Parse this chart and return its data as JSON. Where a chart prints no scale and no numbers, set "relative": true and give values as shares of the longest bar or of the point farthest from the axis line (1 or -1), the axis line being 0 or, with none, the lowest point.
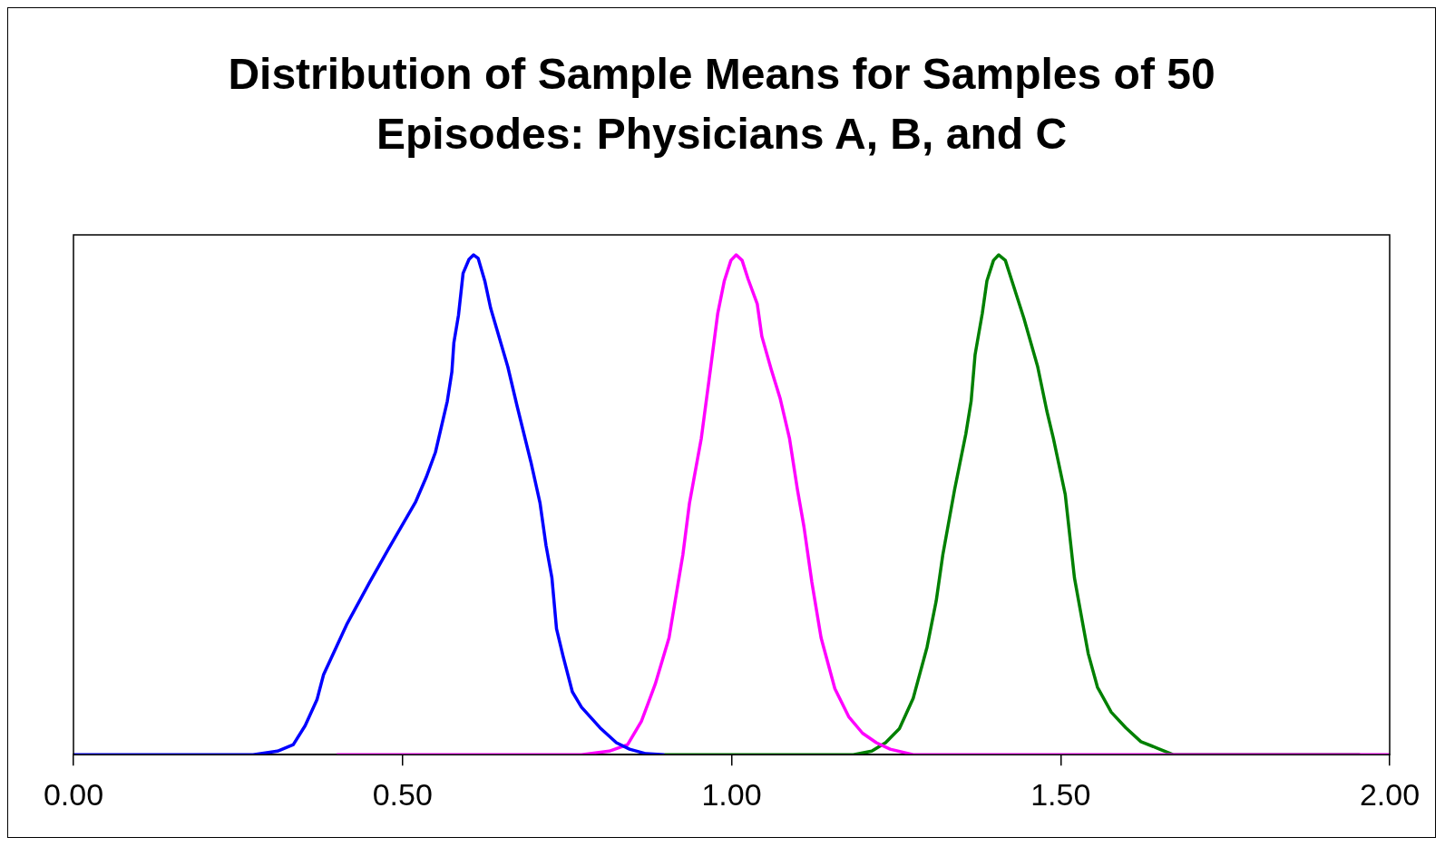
{
  "chart_data": {
    "type": "line",
    "title": "Distribution of Sample Means for Samples of 50 Episodes: Physicians A, B, and C",
    "relative": true,
    "xlim": [
      0,
      2
    ],
    "xticks": [
      {
        "value": 0,
        "label": "0.00"
      },
      {
        "value": 0.5,
        "label": "0.50"
      },
      {
        "value": 1,
        "label": "1.00"
      },
      {
        "value": 1.5,
        "label": "1.50"
      },
      {
        "value": 2,
        "label": "2.00"
      }
    ],
    "marker": "none",
    "line_style": "solid",
    "legend": false,
    "grid": false,
    "series": [
      {
        "color": "#0000ff",
        "x": [
          0,
          0.273,
          0.31,
          0.334,
          0.352,
          0.37,
          0.38,
          0.415,
          0.45,
          0.478,
          0.52,
          0.536,
          0.55,
          0.568,
          0.575,
          0.578,
          0.585,
          0.592,
          0.601,
          0.608,
          0.615,
          0.625,
          0.634,
          0.66,
          0.674,
          0.695,
          0.709,
          0.718,
          0.727,
          0.734,
          0.744,
          0.758,
          0.772,
          0.8,
          0.825,
          0.845,
          0.87,
          0.898
        ],
        "values": [
          0,
          0,
          0.007,
          0.02,
          0.058,
          0.11,
          0.16,
          0.26,
          0.345,
          0.41,
          0.506,
          0.555,
          0.605,
          0.707,
          0.766,
          0.824,
          0.879,
          0.963,
          0.991,
          1,
          0.993,
          0.948,
          0.893,
          0.776,
          0.698,
          0.586,
          0.503,
          0.419,
          0.354,
          0.252,
          0.197,
          0.126,
          0.095,
          0.054,
          0.024,
          0.011,
          0.002,
          0
        ]
      },
      {
        "color": "#ff00ff",
        "x": [
          0.4,
          0.772,
          0.814,
          0.842,
          0.863,
          0.884,
          0.905,
          0.919,
          0.926,
          0.936,
          0.954,
          0.968,
          0.979,
          0.989,
          0.999,
          1.007,
          1.016,
          1.025,
          1.039,
          1.046,
          1.06,
          1.074,
          1.088,
          1.1,
          1.11,
          1.122,
          1.136,
          1.157,
          1.178,
          1.199,
          1.22,
          1.241,
          1.276,
          2
        ],
        "values": [
          0,
          0,
          0.007,
          0.02,
          0.067,
          0.141,
          0.234,
          0.345,
          0.4,
          0.503,
          0.633,
          0.772,
          0.883,
          0.948,
          0.989,
          1,
          0.989,
          0.952,
          0.902,
          0.837,
          0.772,
          0.712,
          0.633,
          0.531,
          0.456,
          0.345,
          0.234,
          0.132,
          0.076,
          0.043,
          0.024,
          0.011,
          0,
          0
        ]
      },
      {
        "color": "#008000",
        "x": [
          0.898,
          1.185,
          1.213,
          1.234,
          1.255,
          1.276,
          1.297,
          1.311,
          1.321,
          1.339,
          1.356,
          1.364,
          1.37,
          1.381,
          1.388,
          1.398,
          1.406,
          1.416,
          1.426,
          1.444,
          1.465,
          1.479,
          1.489,
          1.507,
          1.521,
          1.535,
          1.542,
          1.556,
          1.577,
          1.599,
          1.622,
          1.647,
          1.671,
          1.955
        ],
        "values": [
          0,
          0,
          0.007,
          0.024,
          0.052,
          0.113,
          0.215,
          0.308,
          0.4,
          0.531,
          0.642,
          0.707,
          0.8,
          0.883,
          0.948,
          0.989,
          1,
          0.989,
          0.948,
          0.874,
          0.777,
          0.688,
          0.633,
          0.521,
          0.354,
          0.252,
          0.202,
          0.135,
          0.085,
          0.054,
          0.026,
          0.013,
          0,
          0
        ]
      }
    ]
  }
}
